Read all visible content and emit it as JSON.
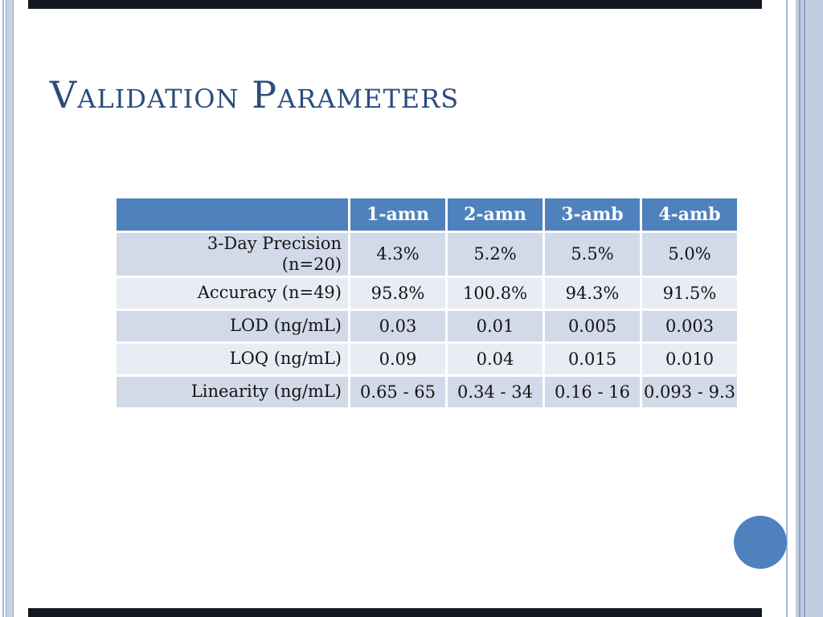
{
  "slide": {
    "title": "Validation Parameters"
  },
  "table": {
    "columns": [
      "",
      "1-amn",
      "2-amn",
      "3-amb",
      "4-amb"
    ],
    "rows": [
      {
        "label": "3-Day Precision (n=20)",
        "values": [
          "4.3%",
          "5.2%",
          "5.5%",
          "5.0%"
        ]
      },
      {
        "label": "Accuracy (n=49)",
        "values": [
          "95.8%",
          "100.8%",
          "94.3%",
          "91.5%"
        ]
      },
      {
        "label": "LOD (ng/mL)",
        "values": [
          "0.03",
          "0.01",
          "0.005",
          "0.003"
        ]
      },
      {
        "label": "LOQ (ng/mL)",
        "values": [
          "0.09",
          "0.04",
          "0.015",
          "0.010"
        ]
      },
      {
        "label": "Linearity (ng/mL)",
        "values": [
          "0.65 - 65",
          "0.34 - 34",
          "0.16 - 16",
          "0.093 - 9.3"
        ]
      }
    ]
  },
  "colors": {
    "header_bg": "#4F81BD",
    "row_band_dark": "#D2D9E8",
    "row_band_light": "#E9ECF4",
    "title_text": "#2B4C7C",
    "accent_circle": "#4E81BD",
    "edge_bar": "#14181F",
    "edge_lines": "#A6B8D6"
  }
}
